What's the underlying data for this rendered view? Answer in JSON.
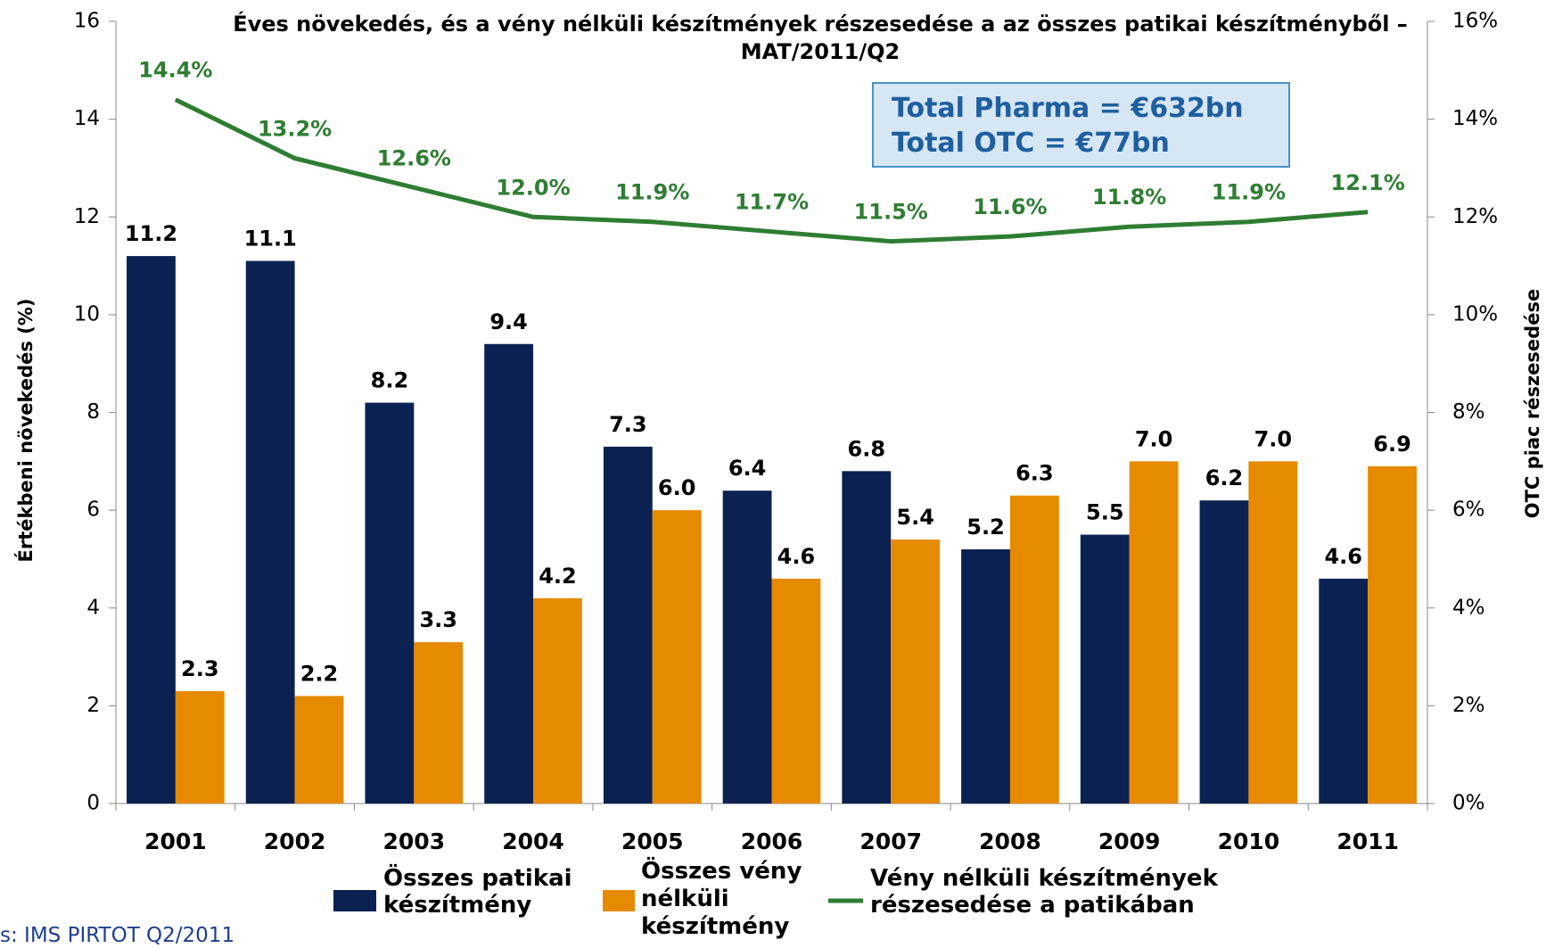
{
  "chart_data": {
    "type": "bar",
    "title": "Éves növekedés, és a vény nélküli készítmények részesedése a az összes patikai készítményből – MAT/2011/Q2",
    "ylabel": "Értékbeni növekedés (%)",
    "y2label": "OTC piac részesedése",
    "categories": [
      "2001",
      "2002",
      "2003",
      "2004",
      "2005",
      "2006",
      "2007",
      "2008",
      "2009",
      "2010",
      "2011"
    ],
    "series": [
      {
        "name": "Összes patikai készítmény",
        "color": "#0b2151",
        "type": "bar",
        "values": [
          11.2,
          11.1,
          8.2,
          9.4,
          7.3,
          6.4,
          6.8,
          5.2,
          5.5,
          6.2,
          4.6
        ]
      },
      {
        "name": "Összes vény nélküli készítmény",
        "color": "#e68a00",
        "type": "bar",
        "values": [
          2.3,
          2.2,
          3.3,
          4.2,
          6,
          4.6,
          5.4,
          6.3,
          7,
          7,
          6.9
        ],
        "value_labels": [
          "2.3",
          "2.2",
          "3.3",
          "4.2",
          "6.0",
          "4.6",
          "5.4",
          "6.3",
          "7.0",
          "7.0",
          "6.9"
        ]
      },
      {
        "name": "Vény nélküli készítmények részesedése a patikában",
        "color": "#2e7d32",
        "type": "line",
        "axis": "y2",
        "values": [
          14.4,
          13.2,
          12.6,
          12,
          11.9,
          11.7,
          11.5,
          11.6,
          11.8,
          11.9,
          12.1
        ],
        "value_labels": [
          "14.4%",
          "13.2%",
          "12.6%",
          "12.0%",
          "11.9%",
          "11.7%",
          "11.5%",
          "11.6%",
          "11.8%",
          "11.9%",
          "12.1%"
        ]
      }
    ],
    "ylim": [
      0,
      16
    ],
    "yticks": [
      0,
      2,
      4,
      6,
      8,
      10,
      12,
      14,
      16
    ],
    "y2lim": [
      0,
      16
    ],
    "y2ticks": [
      {
        "value": 0,
        "label": "0%"
      },
      {
        "value": 2,
        "label": "2%"
      },
      {
        "value": 4,
        "label": "4%"
      },
      {
        "value": 6,
        "label": "6%"
      },
      {
        "value": 8,
        "label": "8%"
      },
      {
        "value": 10,
        "label": "10%"
      },
      {
        "value": 12,
        "label": "12%"
      },
      {
        "value": 14,
        "label": "14%"
      },
      {
        "value": 16,
        "label": "16%"
      }
    ],
    "annotations": [
      "Total Pharma = €632bn",
      "Total OTC = €77bn"
    ],
    "source": "s: IMS PIRTOT Q2/2011"
  }
}
